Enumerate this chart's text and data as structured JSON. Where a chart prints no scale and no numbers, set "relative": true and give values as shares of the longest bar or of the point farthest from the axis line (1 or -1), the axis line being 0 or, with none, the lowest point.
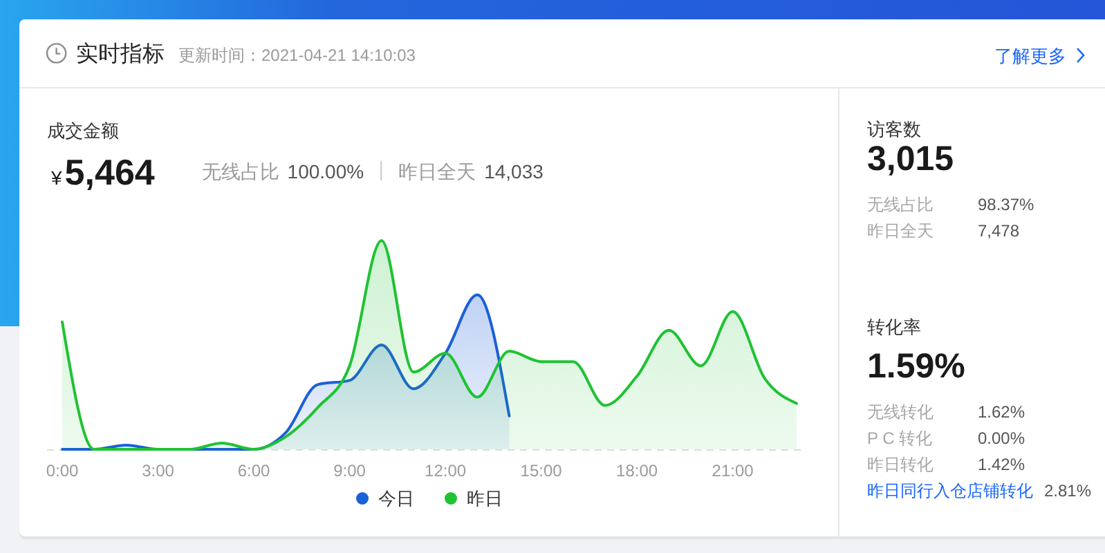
{
  "chart_data": [
    {
      "type": "other",
      "title": "实时指标",
      "subtitle": "更新时间：2021-04-21 14:10:03",
      "annotations": [
        "了解更多"
      ]
    },
    {
      "type": "area",
      "title": "成交金额",
      "annotations": [
        "¥5,464",
        "无线占比",
        "100.00%",
        "昨日全天",
        "14,033"
      ],
      "categories": [
        "0:00",
        null,
        null,
        "3:00",
        null,
        null,
        "6:00",
        null,
        null,
        "9:00",
        null,
        null,
        "12:00",
        null,
        null,
        "15:00",
        null,
        null,
        "18:00",
        null,
        null,
        "21:00",
        null,
        null
      ],
      "relative": true,
      "marker": "none",
      "legend": "bottom",
      "series": [
        {
          "name": "今日",
          "color": "#1b5fd9",
          "values": [
            0,
            0,
            0.02,
            0,
            0,
            0,
            0,
            0.08,
            0.31,
            0.33,
            0.5,
            0.29,
            0.46,
            0.74,
            0.16,
            null,
            null,
            null,
            null,
            null,
            null,
            null,
            null,
            null
          ]
        },
        {
          "name": "昨日",
          "color": "#1fc233",
          "values": [
            0.61,
            0,
            0,
            0,
            0,
            0.03,
            0,
            0.06,
            0.2,
            0.4,
            1,
            0.37,
            0.46,
            0.25,
            0.47,
            0.42,
            0.42,
            0.21,
            0.35,
            0.57,
            0.4,
            0.66,
            0.34,
            0.22
          ]
        }
      ]
    },
    {
      "type": "other",
      "title": "访客数",
      "annotations": [
        "3,015",
        "无线占比",
        "98.37%",
        "昨日全天",
        "7,478"
      ]
    },
    {
      "type": "other",
      "title": "转化率",
      "annotations": [
        "1.59%",
        "无线转化",
        "1.62%",
        "P C 转化",
        "0.00%",
        "昨日转化",
        "1.42%",
        "昨日同行入仓店铺转化",
        "2.81%"
      ]
    }
  ]
}
